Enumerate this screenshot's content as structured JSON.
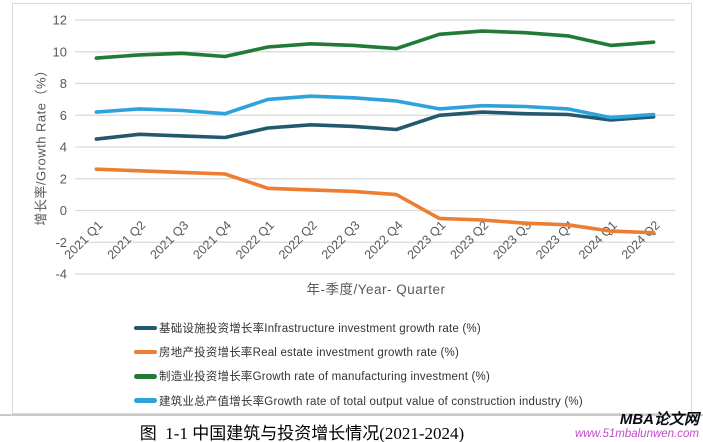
{
  "chart": {
    "y_axis_title": "增长率/Growth Rate（%）",
    "x_axis_title": "年-季度/Year- Quarter"
  },
  "chart_data": {
    "type": "line",
    "title": "",
    "xlabel": "年-季度/Year- Quarter",
    "ylabel": "增长率/Growth Rate（%）",
    "ylim": [
      -4,
      12
    ],
    "ytick_step": 2,
    "grid": true,
    "legend_position": "bottom-left",
    "categories": [
      "2021 Q1",
      "2021 Q2",
      "2021 Q3",
      "2021 Q4",
      "2022 Q1",
      "2022 Q2",
      "2022 Q3",
      "2022 Q4",
      "2023 Q1",
      "2023 Q2",
      "2023 Q3",
      "2023 Q4",
      "2024 Q1",
      "2024 Q2"
    ],
    "series": [
      {
        "key": "infrastructure",
        "label": "基础设施投资增长率Infrastructure investment growth rate (%)",
        "color": "#23596F",
        "values": [
          4.5,
          4.8,
          4.7,
          4.6,
          5.2,
          5.4,
          5.3,
          5.1,
          6.0,
          6.2,
          6.1,
          6.05,
          5.7,
          5.9
        ]
      },
      {
        "key": "real-estate",
        "label": "房地产投资增长率Real estate investment growth rate (%)",
        "color": "#ED7D31",
        "values": [
          2.6,
          2.5,
          2.4,
          2.3,
          1.4,
          1.3,
          1.2,
          1.0,
          -0.5,
          -0.6,
          -0.8,
          -0.9,
          -1.3,
          -1.4
        ]
      },
      {
        "key": "manufacturing",
        "label": "制造业投资增长率Growth rate of manufacturing investment (%)",
        "color": "#217B36",
        "values": [
          9.6,
          9.8,
          9.9,
          9.7,
          10.3,
          10.5,
          10.4,
          10.2,
          11.1,
          11.3,
          11.2,
          11.0,
          10.4,
          10.6
        ]
      },
      {
        "key": "construction-output",
        "label": "建筑业总产值增长率Growth rate of total output value of construction industry (%)",
        "color": "#2DA2DB",
        "values": [
          6.2,
          6.4,
          6.3,
          6.1,
          7.0,
          7.2,
          7.1,
          6.9,
          6.4,
          6.6,
          6.55,
          6.4,
          5.85,
          6.05
        ]
      }
    ],
    "axis_text_color": "#595959",
    "gridline_color": "#d9d9d9"
  },
  "caption": "图  1-1 中国建筑与投资增长情况(2021-2024)",
  "watermark": {
    "site_name": "MBA论文网",
    "site_url": "www.51mbalunwen.com"
  }
}
